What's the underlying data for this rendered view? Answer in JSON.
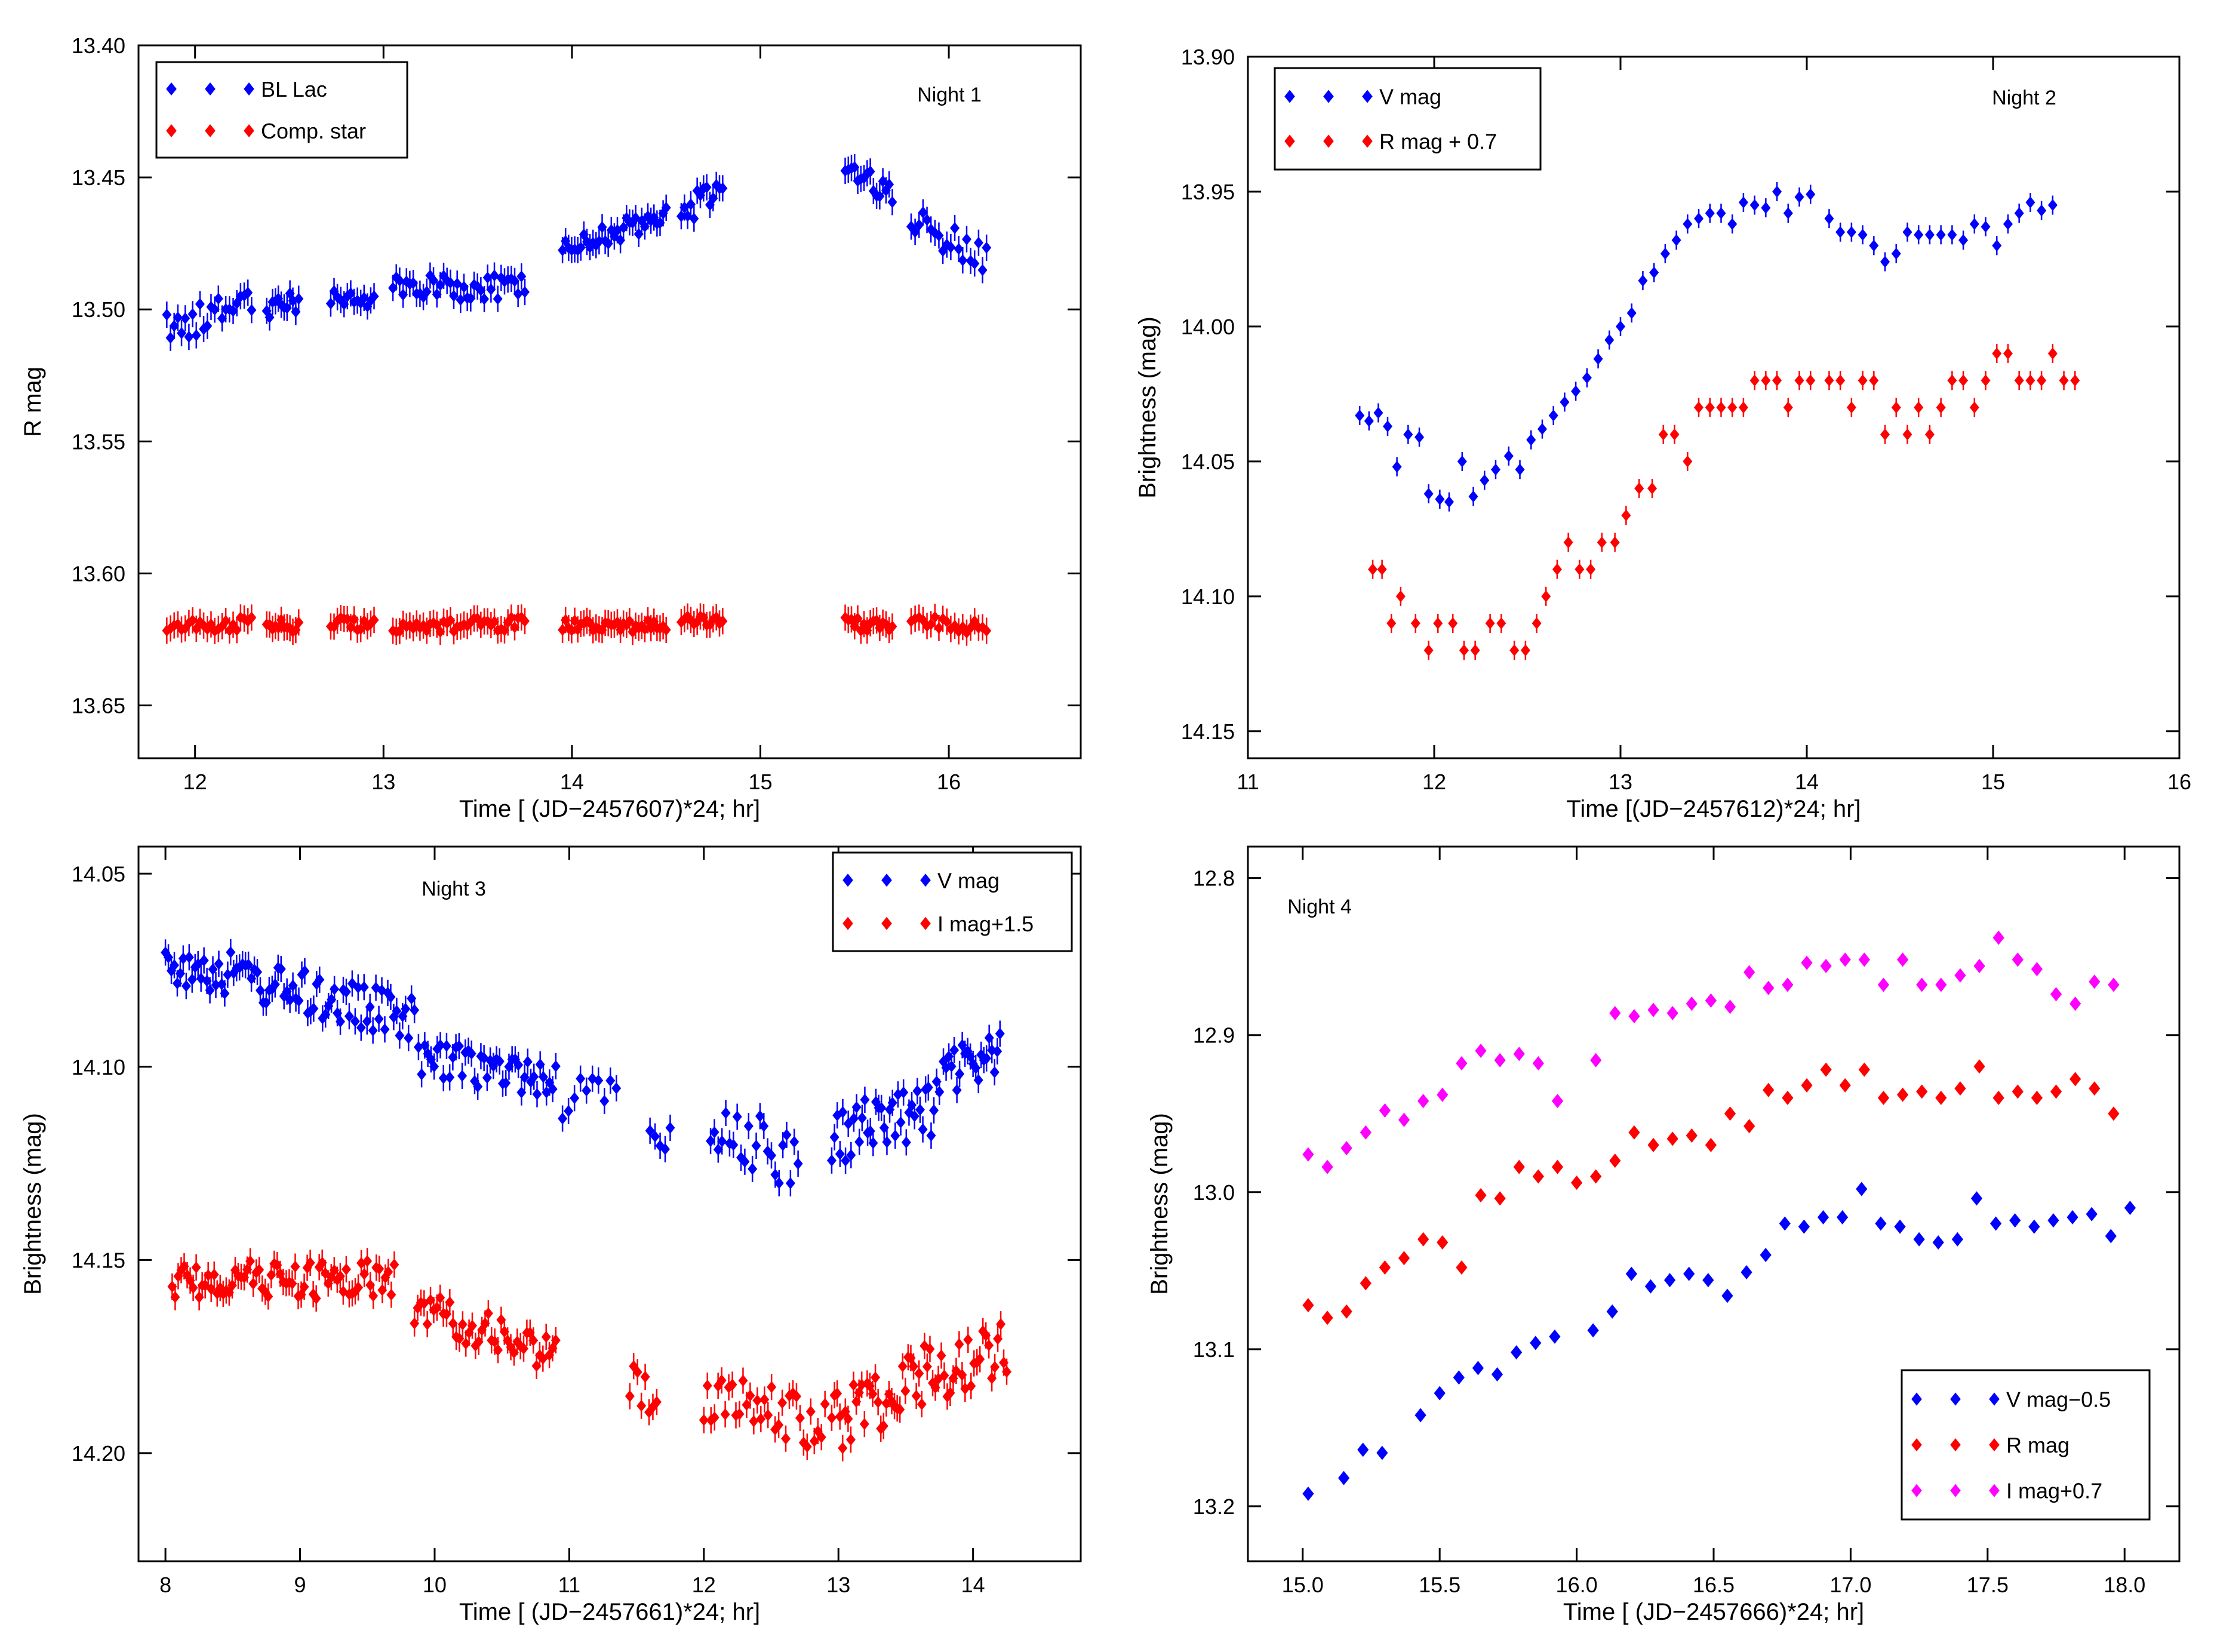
{
  "chart_data": [
    {
      "id": "night1",
      "type": "scatter",
      "panel_label": "Night 1",
      "xlabel": "Time [ (JD−2457607)*24; hr]",
      "ylabel": "R mag",
      "xlim": [
        11.7,
        16.7
      ],
      "ylim": [
        13.67,
        13.4
      ],
      "xticks": [
        12,
        13,
        14,
        15,
        16
      ],
      "yticks": [
        13.4,
        13.45,
        13.5,
        13.55,
        13.6,
        13.65
      ],
      "xtick_labels": [
        "12",
        "13",
        "14",
        "15",
        "16"
      ],
      "ytick_labels": [
        "13.40",
        "13.45",
        "13.50",
        "13.55",
        "13.60",
        "13.65"
      ],
      "legend_position": "top-left",
      "series": [
        {
          "name": "BL Lac",
          "color": "#0000ff",
          "segments": [
            {
              "x0": 11.85,
              "x1": 12.3,
              "n": 24,
              "y0": 13.508,
              "y1": 13.497,
              "wiggle": 0.006
            },
            {
              "x0": 12.38,
              "x1": 12.55,
              "n": 12,
              "y0": 13.5,
              "y1": 13.497,
              "wiggle": 0.004
            },
            {
              "x0": 12.72,
              "x1": 12.95,
              "n": 14,
              "y0": 13.497,
              "y1": 13.495,
              "wiggle": 0.004
            },
            {
              "x0": 13.05,
              "x1": 13.75,
              "n": 40,
              "y0": 13.492,
              "y1": 13.492,
              "wiggle": 0.005
            },
            {
              "x0": 13.95,
              "x1": 14.5,
              "n": 35,
              "y0": 13.478,
              "y1": 13.464,
              "wiggle": 0.004
            },
            {
              "x0": 14.58,
              "x1": 14.8,
              "n": 14,
              "y0": 13.463,
              "y1": 13.455,
              "wiggle": 0.006
            },
            {
              "x0": 15.45,
              "x1": 15.7,
              "n": 16,
              "y0": 13.445,
              "y1": 13.457,
              "wiggle": 0.004
            },
            {
              "x0": 15.8,
              "x1": 16.2,
              "n": 20,
              "y0": 13.467,
              "y1": 13.48,
              "wiggle": 0.006
            }
          ]
        },
        {
          "name": "Comp. star",
          "color": "#ff0000",
          "segments": [
            {
              "x0": 11.85,
              "x1": 12.3,
              "n": 24,
              "y0": 13.62,
              "y1": 13.619,
              "wiggle": 0.0025
            },
            {
              "x0": 12.38,
              "x1": 12.55,
              "n": 12,
              "y0": 13.62,
              "y1": 13.62,
              "wiggle": 0.0025
            },
            {
              "x0": 12.72,
              "x1": 12.95,
              "n": 14,
              "y0": 13.619,
              "y1": 13.619,
              "wiggle": 0.0025
            },
            {
              "x0": 13.05,
              "x1": 13.75,
              "n": 40,
              "y0": 13.62,
              "y1": 13.619,
              "wiggle": 0.0025
            },
            {
              "x0": 13.95,
              "x1": 14.5,
              "n": 35,
              "y0": 13.619,
              "y1": 13.62,
              "wiggle": 0.0025
            },
            {
              "x0": 14.58,
              "x1": 14.8,
              "n": 14,
              "y0": 13.618,
              "y1": 13.618,
              "wiggle": 0.002
            },
            {
              "x0": 15.45,
              "x1": 15.7,
              "n": 16,
              "y0": 13.619,
              "y1": 13.62,
              "wiggle": 0.0025
            },
            {
              "x0": 15.8,
              "x1": 16.2,
              "n": 20,
              "y0": 13.618,
              "y1": 13.621,
              "wiggle": 0.0025
            }
          ]
        }
      ]
    },
    {
      "id": "night2",
      "type": "scatter",
      "panel_label": "Night 2",
      "xlabel": "Time [(JD−2457612)*24; hr]",
      "ylabel": "Brightness (mag)",
      "xlim": [
        11,
        16
      ],
      "ylim": [
        14.16,
        13.9
      ],
      "xticks": [
        11,
        12,
        13,
        14,
        15,
        16
      ],
      "yticks": [
        13.9,
        13.95,
        14.0,
        14.05,
        14.1,
        14.15
      ],
      "xtick_labels": [
        "11",
        "12",
        "13",
        "14",
        "15",
        "16"
      ],
      "ytick_labels": [
        "13.90",
        "13.95",
        "14.00",
        "14.05",
        "14.10",
        "14.15"
      ],
      "legend_position": "top-left",
      "series": [
        {
          "name": "V mag",
          "color": "#0000ff",
          "x": [
            11.6,
            11.65,
            11.7,
            11.75,
            11.8,
            11.86,
            11.92,
            11.97,
            12.03,
            12.08,
            12.15,
            12.21,
            12.27,
            12.33,
            12.4,
            12.46,
            12.52,
            12.58,
            12.64,
            12.7,
            12.76,
            12.82,
            12.88,
            12.94,
            13.0,
            13.06,
            13.12,
            13.18,
            13.24,
            13.3,
            13.36,
            13.42,
            13.48,
            13.54,
            13.6,
            13.66,
            13.72,
            13.78,
            13.84,
            13.9,
            13.96,
            14.02,
            14.12,
            14.18,
            14.24,
            14.3,
            14.36,
            14.42,
            14.48,
            14.54,
            14.6,
            14.66,
            14.72,
            14.78,
            14.84,
            14.9,
            14.96,
            15.02,
            15.08,
            15.14,
            15.2,
            15.26,
            15.32
          ],
          "y": [
            14.033,
            14.035,
            14.032,
            14.037,
            14.052,
            14.04,
            14.041,
            14.062,
            14.064,
            14.065,
            14.05,
            14.063,
            14.057,
            14.053,
            14.048,
            14.053,
            14.042,
            14.038,
            14.033,
            14.028,
            14.024,
            14.019,
            14.012,
            14.005,
            14.0,
            13.995,
            13.983,
            13.98,
            13.973,
            13.968,
            13.962,
            13.96,
            13.958,
            13.958,
            13.962,
            13.954,
            13.955,
            13.956,
            13.95,
            13.958,
            13.952,
            13.951,
            13.96,
            13.965,
            13.965,
            13.966,
            13.97,
            13.976,
            13.973,
            13.965,
            13.966,
            13.966,
            13.966,
            13.966,
            13.968,
            13.962,
            13.963,
            13.97,
            13.962,
            13.958,
            13.954,
            13.957,
            13.955
          ]
        },
        {
          "name": "R mag + 0.7",
          "color": "#ff0000",
          "x": [
            11.67,
            11.72,
            11.77,
            11.82,
            11.9,
            11.97,
            12.02,
            12.1,
            12.16,
            12.22,
            12.3,
            12.36,
            12.43,
            12.49,
            12.55,
            12.6,
            12.66,
            12.72,
            12.78,
            12.84,
            12.9,
            12.97,
            13.03,
            13.1,
            13.17,
            13.23,
            13.29,
            13.36,
            13.42,
            13.48,
            13.54,
            13.6,
            13.66,
            13.72,
            13.78,
            13.84,
            13.9,
            13.96,
            14.02,
            14.12,
            14.18,
            14.24,
            14.3,
            14.36,
            14.42,
            14.48,
            14.54,
            14.6,
            14.66,
            14.72,
            14.78,
            14.84,
            14.9,
            14.96,
            15.02,
            15.08,
            15.14,
            15.2,
            15.26,
            15.32,
            15.38,
            15.44
          ],
          "y": [
            14.09,
            14.09,
            14.11,
            14.1,
            14.11,
            14.12,
            14.11,
            14.11,
            14.12,
            14.12,
            14.11,
            14.11,
            14.12,
            14.12,
            14.11,
            14.1,
            14.09,
            14.08,
            14.09,
            14.09,
            14.08,
            14.08,
            14.07,
            14.06,
            14.06,
            14.04,
            14.04,
            14.05,
            14.03,
            14.03,
            14.03,
            14.03,
            14.03,
            14.02,
            14.02,
            14.02,
            14.03,
            14.02,
            14.02,
            14.02,
            14.02,
            14.03,
            14.02,
            14.02,
            14.04,
            14.03,
            14.04,
            14.03,
            14.04,
            14.03,
            14.02,
            14.02,
            14.03,
            14.02,
            14.01,
            14.01,
            14.02,
            14.02,
            14.02,
            14.01,
            14.02,
            14.02
          ]
        }
      ]
    },
    {
      "id": "night3",
      "type": "scatter",
      "panel_label": "Night 3",
      "xlabel": "Time [ (JD−2457661)*24; hr]",
      "ylabel": "Brightness (mag)",
      "xlim": [
        7.8,
        14.8
      ],
      "ylim": [
        14.228,
        14.043
      ],
      "xticks": [
        8,
        9,
        10,
        11,
        12,
        13,
        14
      ],
      "yticks": [
        14.05,
        14.1,
        14.15,
        14.2
      ],
      "xtick_labels": [
        "8",
        "9",
        "10",
        "11",
        "12",
        "13",
        "14"
      ],
      "ytick_labels": [
        "14.05",
        "14.10",
        "14.15",
        "14.20"
      ],
      "legend_position": "top-right",
      "series": [
        {
          "name": "V mag",
          "color": "#0000ff",
          "segments": [
            {
              "x0": 8.0,
              "x1": 9.85,
              "n": 85,
              "y0": 14.072,
              "y1": 14.088,
              "wiggle": 0.006
            },
            {
              "x0": 9.88,
              "x1": 10.9,
              "n": 45,
              "y0": 14.098,
              "y1": 14.103,
              "wiggle": 0.005
            },
            {
              "x0": 10.95,
              "x1": 11.35,
              "n": 10,
              "y0": 14.108,
              "y1": 14.108,
              "wiggle": 0.006
            },
            {
              "x0": 11.6,
              "x1": 11.75,
              "n": 5,
              "y0": 14.118,
              "y1": 14.118,
              "wiggle": 0.004
            },
            {
              "x0": 12.05,
              "x1": 12.7,
              "n": 24,
              "y0": 14.114,
              "y1": 14.125,
              "wiggle": 0.008
            },
            {
              "x0": 12.95,
              "x1": 13.75,
              "n": 40,
              "y0": 14.118,
              "y1": 14.11,
              "wiggle": 0.008
            },
            {
              "x0": 13.78,
              "x1": 14.2,
              "n": 22,
              "y0": 14.102,
              "y1": 14.097,
              "wiggle": 0.006
            }
          ]
        },
        {
          "name": "I mag+1.5",
          "color": "#ff0000",
          "segments": [
            {
              "x0": 8.05,
              "x1": 9.7,
              "n": 75,
              "y0": 14.155,
              "y1": 14.155,
              "wiggle": 0.005
            },
            {
              "x0": 9.85,
              "x1": 10.9,
              "n": 45,
              "y0": 14.162,
              "y1": 14.175,
              "wiggle": 0.005
            },
            {
              "x0": 11.45,
              "x1": 11.65,
              "n": 8,
              "y0": 14.18,
              "y1": 14.185,
              "wiggle": 0.008
            },
            {
              "x0": 12.0,
              "x1": 12.9,
              "n": 35,
              "y0": 14.185,
              "y1": 14.193,
              "wiggle": 0.007
            },
            {
              "x0": 12.95,
              "x1": 13.7,
              "n": 38,
              "y0": 14.192,
              "y1": 14.178,
              "wiggle": 0.009
            },
            {
              "x0": 13.72,
              "x1": 14.25,
              "n": 25,
              "y0": 14.18,
              "y1": 14.172,
              "wiggle": 0.007
            }
          ]
        }
      ]
    },
    {
      "id": "night4",
      "type": "scatter",
      "panel_label": "Night 4",
      "xlabel": "Time [ (JD−2457666)*24; hr]",
      "ylabel": "Brightness (mag)",
      "xlim": [
        14.8,
        18.2
      ],
      "ylim": [
        13.235,
        12.78
      ],
      "xticks": [
        15.0,
        15.5,
        16.0,
        16.5,
        17.0,
        17.5,
        18.0
      ],
      "yticks": [
        12.8,
        12.9,
        13.0,
        13.1,
        13.2
      ],
      "xtick_labels": [
        "15.0",
        "15.5",
        "16.0",
        "16.5",
        "17.0",
        "17.5",
        "18.0"
      ],
      "ytick_labels": [
        "12.8",
        "12.9",
        "13.0",
        "13.1",
        "13.2"
      ],
      "legend_position": "bottom-right",
      "series": [
        {
          "name": "V mag−0.5",
          "color": "#0000ff",
          "x": [
            15.02,
            15.15,
            15.22,
            15.29,
            15.43,
            15.5,
            15.57,
            15.64,
            15.71,
            15.78,
            15.85,
            15.92,
            16.06,
            16.13,
            16.2,
            16.27,
            16.34,
            16.41,
            16.48,
            16.55,
            16.62,
            16.69,
            16.76,
            16.83,
            16.9,
            16.97,
            17.04,
            17.11,
            17.18,
            17.25,
            17.32,
            17.39,
            17.46,
            17.53,
            17.6,
            17.67,
            17.74,
            17.81,
            17.88,
            17.95,
            18.02
          ],
          "y": [
            13.192,
            13.182,
            13.164,
            13.166,
            13.142,
            13.128,
            13.118,
            13.112,
            13.116,
            13.102,
            13.096,
            13.092,
            13.088,
            13.076,
            13.052,
            13.06,
            13.056,
            13.052,
            13.056,
            13.066,
            13.051,
            13.04,
            13.02,
            13.022,
            13.016,
            13.016,
            12.998,
            13.02,
            13.022,
            13.03,
            13.032,
            13.03,
            13.004,
            13.02,
            13.018,
            13.022,
            13.018,
            13.016,
            13.014,
            13.028,
            13.01
          ]
        },
        {
          "name": "R mag",
          "color": "#ff0000",
          "x": [
            15.02,
            15.09,
            15.16,
            15.23,
            15.3,
            15.37,
            15.44,
            15.51,
            15.58,
            15.65,
            15.72,
            15.79,
            15.86,
            15.93,
            16.0,
            16.07,
            16.14,
            16.21,
            16.28,
            16.35,
            16.42,
            16.49,
            16.56,
            16.63,
            16.7,
            16.77,
            16.84,
            16.91,
            16.98,
            17.05,
            17.12,
            17.19,
            17.26,
            17.33,
            17.4,
            17.47,
            17.54,
            17.61,
            17.68,
            17.75,
            17.82,
            17.89,
            17.96
          ],
          "y": [
            13.072,
            13.08,
            13.076,
            13.058,
            13.048,
            13.042,
            13.03,
            13.032,
            13.048,
            13.002,
            13.004,
            12.984,
            12.99,
            12.984,
            12.994,
            12.99,
            12.98,
            12.962,
            12.97,
            12.966,
            12.964,
            12.97,
            12.95,
            12.958,
            12.935,
            12.94,
            12.932,
            12.922,
            12.932,
            12.922,
            12.94,
            12.938,
            12.936,
            12.94,
            12.934,
            12.92,
            12.94,
            12.936,
            12.94,
            12.936,
            12.928,
            12.934,
            12.95
          ]
        },
        {
          "name": "I mag+0.7",
          "color": "#ff00ff",
          "x": [
            15.02,
            15.09,
            15.16,
            15.23,
            15.3,
            15.37,
            15.44,
            15.51,
            15.58,
            15.65,
            15.72,
            15.79,
            15.86,
            15.93,
            16.07,
            16.14,
            16.21,
            16.28,
            16.35,
            16.42,
            16.49,
            16.56,
            16.63,
            16.7,
            16.77,
            16.84,
            16.91,
            16.98,
            17.05,
            17.12,
            17.19,
            17.26,
            17.33,
            17.4,
            17.47,
            17.54,
            17.61,
            17.68,
            17.75,
            17.82,
            17.89,
            17.96
          ],
          "y": [
            12.976,
            12.984,
            12.972,
            12.962,
            12.948,
            12.954,
            12.942,
            12.938,
            12.918,
            12.91,
            12.916,
            12.912,
            12.918,
            12.942,
            12.916,
            12.886,
            12.888,
            12.884,
            12.886,
            12.88,
            12.878,
            12.882,
            12.86,
            12.87,
            12.868,
            12.854,
            12.856,
            12.852,
            12.852,
            12.868,
            12.852,
            12.868,
            12.868,
            12.862,
            12.856,
            12.838,
            12.852,
            12.858,
            12.874,
            12.88,
            12.866,
            12.868
          ]
        }
      ]
    }
  ]
}
